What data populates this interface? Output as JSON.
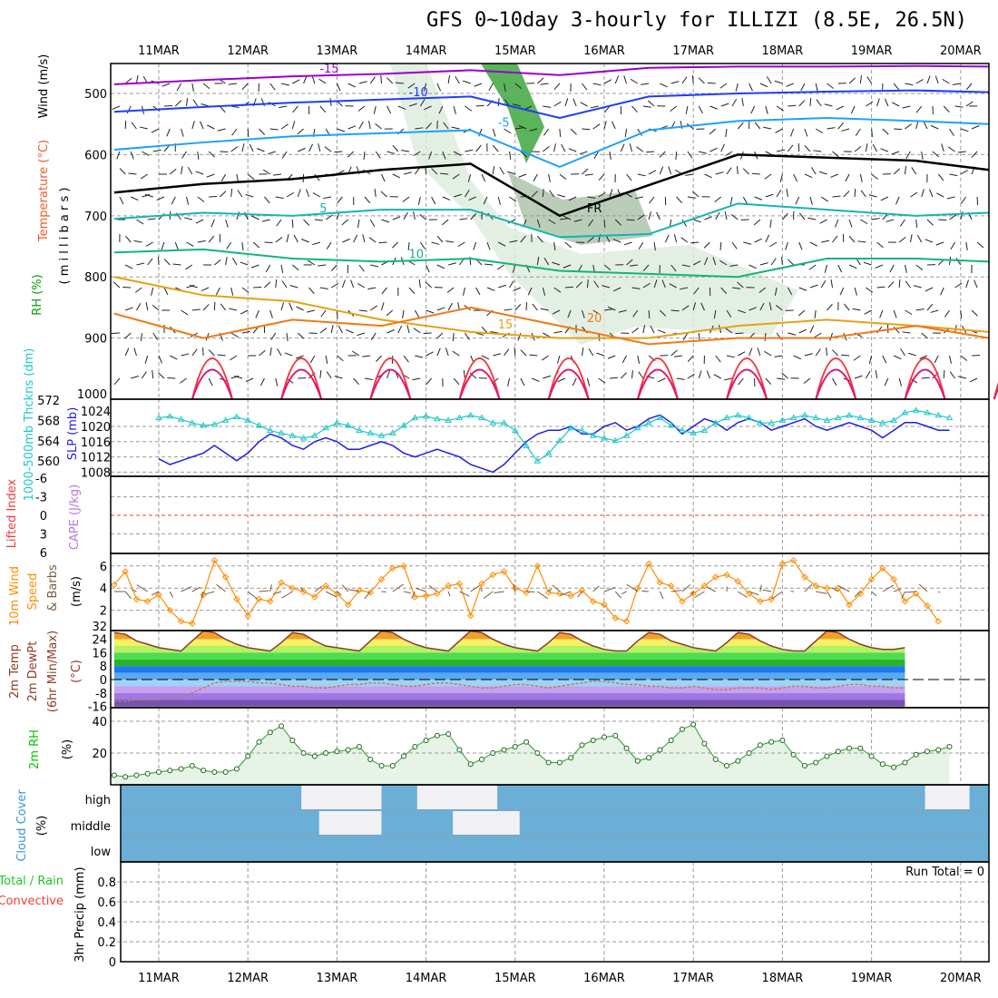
{
  "title": "GFS 0~10day 3-hourly for ILLIZI (8.5E, 26.5N)",
  "dates": [
    "11MAR",
    "12MAR",
    "13MAR",
    "14MAR",
    "15MAR",
    "16MAR",
    "17MAR",
    "18MAR",
    "19MAR",
    "20MAR"
  ],
  "chart_data": [
    {
      "type": "line",
      "name": "upper-air",
      "ylabel": "millibars",
      "labels": [
        "Wind (m/s)",
        "Temperature (°C)",
        "RH (%)"
      ],
      "yticks": [
        500,
        600,
        700,
        800,
        900,
        1000
      ],
      "ylim": [
        451,
        1000
      ],
      "isotherms": [
        {
          "label": "-15",
          "color": "#9a00d0",
          "levels": [
            485,
            478,
            472,
            468,
            462,
            470,
            458,
            456,
            456,
            455,
            456
          ]
        },
        {
          "label": "-10",
          "color": "#1e3cff",
          "levels": [
            530,
            522,
            515,
            510,
            505,
            540,
            505,
            500,
            497,
            495,
            498
          ]
        },
        {
          "label": "-5",
          "color": "#1ea0ff",
          "levels": [
            592,
            580,
            570,
            565,
            560,
            620,
            560,
            545,
            540,
            545,
            550
          ]
        },
        {
          "label": "FR",
          "color": "#000000",
          "levels": [
            662,
            648,
            640,
            625,
            615,
            700,
            650,
            600,
            605,
            610,
            625
          ]
        },
        {
          "label": "5",
          "color": "#14b4b4",
          "levels": [
            705,
            695,
            700,
            690,
            690,
            735,
            730,
            680,
            690,
            700,
            695
          ]
        },
        {
          "label": "10",
          "color": "#14b478",
          "levels": [
            760,
            755,
            770,
            775,
            770,
            790,
            795,
            800,
            770,
            770,
            775
          ]
        },
        {
          "label": "15",
          "color": "#e6a014",
          "levels": [
            800,
            830,
            840,
            870,
            890,
            900,
            900,
            880,
            870,
            880,
            890
          ]
        },
        {
          "label": "20",
          "color": "#f07814",
          "levels": [
            860,
            900,
            870,
            880,
            850,
            880,
            910,
            900,
            900,
            880,
            900
          ]
        }
      ]
    },
    {
      "type": "line",
      "name": "thickness-slp",
      "ylabel_left": "1000-500mb Thckns (dm)",
      "ylabel_right": "SLP (mb)",
      "yticks_left": [
        560,
        564,
        568,
        572
      ],
      "yticks_right": [
        1008,
        1012,
        1016,
        1020,
        1024
      ],
      "thickness": [
        568.5,
        568.8,
        568.2,
        567.5,
        567.0,
        567.2,
        568.0,
        568.7,
        568.0,
        567.0,
        566.0,
        565.5,
        565.0,
        564.5,
        565.0,
        566.5,
        567.5,
        567.0,
        566.0,
        565.5,
        565.0,
        565.5,
        567.0,
        568.5,
        568.8,
        568.3,
        568.0,
        568.5,
        569.0,
        568.5,
        567.5,
        567.5,
        566.0,
        563.0,
        560.0,
        561.5,
        564.0,
        566.5,
        566.0,
        565.0,
        564.5,
        564.0,
        565.0,
        566.5,
        567.5,
        568.5,
        567.0,
        566.0,
        565.5,
        566.0,
        567.5,
        568.5,
        569.0,
        568.5,
        567.5,
        567.5,
        568.0,
        568.5,
        569.0,
        568.5,
        568.0,
        568.5,
        569.0,
        568.5,
        568.0,
        567.5,
        568.0,
        569.5,
        570.0,
        569.5,
        569.0,
        568.5
      ],
      "slp": [
        1011.5,
        1010,
        1011,
        1012,
        1013,
        1015,
        1013,
        1011,
        1013,
        1016,
        1018,
        1017,
        1015,
        1014,
        1016,
        1017,
        1016,
        1014,
        1014,
        1015,
        1016,
        1015,
        1013,
        1012,
        1013,
        1014,
        1013,
        1012,
        1010,
        1009,
        1008,
        1010,
        1013,
        1016,
        1018,
        1019,
        1019,
        1020,
        1018,
        1018,
        1020,
        1021,
        1019,
        1020,
        1022,
        1023,
        1021,
        1018,
        1020,
        1022,
        1021,
        1019,
        1021,
        1022,
        1021,
        1019,
        1020,
        1021,
        1022,
        1020,
        1019,
        1020,
        1021,
        1020,
        1019,
        1017,
        1019,
        1021,
        1021,
        1020,
        1019,
        1019
      ],
      "colors": {
        "thickness": "#1ec8c8",
        "slp": "#1e1ee6"
      }
    },
    {
      "type": "line",
      "name": "lifted-index-cape",
      "labels": [
        "Lifted Index",
        "CAPE (J/kg)"
      ],
      "yticks": [
        -6,
        -3,
        0,
        3,
        6
      ]
    },
    {
      "type": "line",
      "name": "10m-wind",
      "labels": [
        "10m Wind",
        "Speed",
        "& Barbs",
        "(m/s)"
      ],
      "yticks": [
        2,
        4,
        6
      ],
      "speed": [
        4.3,
        5.5,
        3.0,
        2.8,
        3.4,
        2.0,
        1.0,
        0.8,
        3.4,
        6.5,
        5.0,
        3.0,
        1.5,
        3.0,
        2.8,
        4.5,
        4.0,
        3.7,
        3.2,
        4.2,
        3.5,
        2.5,
        3.8,
        3.6,
        4.8,
        5.8,
        6.0,
        3.2,
        3.3,
        3.5,
        4.2,
        4.4,
        1.5,
        4.4,
        5.2,
        5.5,
        4.0,
        3.6,
        6.0,
        3.6,
        3.5,
        3.3,
        3.8,
        2.8,
        2.5,
        1.3,
        1.0,
        4.0,
        6.2,
        4.5,
        4.2,
        2.8,
        3.5,
        4.2,
        5.0,
        5.2,
        4.6,
        3.5,
        2.8,
        3.0,
        6.2,
        6.5,
        5.0,
        4.2,
        4.0,
        4.0,
        2.5,
        3.5,
        4.8,
        5.8,
        4.8,
        2.8,
        3.5,
        2.4,
        1.0
      ],
      "color": "#ff8c00"
    },
    {
      "type": "area",
      "name": "2m-temp",
      "labels": [
        "2m Temp",
        "2m DewPt",
        "(6hr Min/Max)",
        "(°C)"
      ],
      "yticks": [
        -16,
        -8,
        0,
        8,
        16,
        24,
        32
      ],
      "temp": [
        28,
        27,
        23,
        21,
        19,
        18,
        17,
        23,
        29,
        28,
        24,
        21,
        19,
        18,
        17,
        22,
        28,
        27,
        23,
        20,
        19,
        18,
        17,
        23,
        29,
        28,
        24,
        21,
        19,
        18,
        17,
        23,
        29,
        28,
        24,
        21,
        19,
        18,
        17,
        22,
        28,
        27,
        23,
        20,
        18,
        17,
        17,
        23,
        28,
        27,
        23,
        21,
        19,
        18,
        17,
        22,
        28,
        27,
        23,
        20,
        18,
        17,
        17,
        23,
        29,
        28,
        24,
        21,
        19,
        18,
        18,
        19
      ],
      "dewpt": [
        -13,
        -13,
        -12,
        -12,
        -12,
        -11,
        -10,
        -8,
        -5,
        -2,
        -1,
        -1,
        -1,
        -2,
        -2,
        -3,
        -4,
        -4,
        -5,
        -5,
        -4,
        -3,
        -3,
        -2,
        -2,
        -3,
        -4,
        -4,
        -3,
        -2,
        -2,
        -3,
        -4,
        -5,
        -5,
        -4,
        -3,
        -3,
        -4,
        -5,
        -4,
        -3,
        -2,
        -1,
        -1,
        -2,
        -3,
        -3,
        -4,
        -4,
        -5,
        -5,
        -4,
        -5,
        -6,
        -6,
        -5,
        -5,
        -5,
        -6,
        -5,
        -4,
        -4,
        -5,
        -5,
        -4,
        -3,
        -3,
        -4,
        -4,
        -5,
        -5
      ]
    },
    {
      "type": "area",
      "name": "2m-rh",
      "labels": [
        "2m RH",
        "(%)"
      ],
      "yticks": [
        20,
        40
      ],
      "color": "#00c800",
      "rh": [
        6,
        5,
        6,
        7,
        8,
        9,
        10,
        12,
        9,
        8,
        8,
        10,
        18,
        27,
        33,
        37,
        28,
        20,
        18,
        20,
        21,
        22,
        24,
        16,
        12,
        12,
        18,
        24,
        28,
        31,
        32,
        22,
        13,
        16,
        20,
        22,
        24,
        27,
        20,
        14,
        14,
        17,
        25,
        28,
        30,
        31,
        23,
        15,
        17,
        22,
        28,
        35,
        38,
        26,
        16,
        12,
        15,
        20,
        25,
        27,
        28,
        19,
        12,
        14,
        18,
        21,
        23,
        23,
        18,
        13,
        11,
        14,
        19,
        21,
        22,
        24
      ]
    },
    {
      "type": "heatmap",
      "name": "cloud-cover",
      "labels": [
        "Cloud Cover",
        "(%)"
      ],
      "levels": [
        "high",
        "middle",
        "low"
      ],
      "clear_blocks": [
        {
          "level": "high",
          "from": 1.6,
          "to": 2.5
        },
        {
          "level": "middle",
          "from": 1.8,
          "to": 2.5
        },
        {
          "level": "high",
          "from": 2.9,
          "to": 3.8
        },
        {
          "level": "middle",
          "from": 3.3,
          "to": 4.05
        },
        {
          "level": "high",
          "from": 8.6,
          "to": 9.1
        }
      ]
    },
    {
      "type": "bar",
      "name": "precip",
      "labels": [
        "Total / Rain",
        "Convective",
        "3hr Precip (mm)"
      ],
      "yticks": [
        0,
        0.2,
        0.4,
        0.6,
        0.8
      ],
      "run_total": "Run Total = 0"
    }
  ]
}
